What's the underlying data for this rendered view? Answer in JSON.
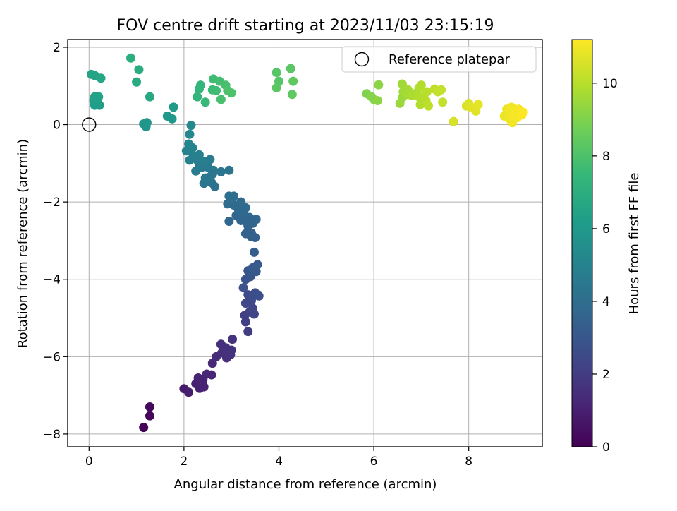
{
  "chart_data": {
    "type": "scatter",
    "title": "FOV centre drift starting at 2023/11/03 23:15:19",
    "xlabel": "Angular distance from reference (arcmin)",
    "ylabel": "Rotation from reference (arcmin)",
    "xlim": [
      -0.45,
      9.55
    ],
    "ylim": [
      -8.33,
      2.2
    ],
    "x_ticks": [
      0,
      2,
      4,
      6,
      8
    ],
    "y_ticks": [
      -8,
      -6,
      -4,
      -2,
      0,
      2
    ],
    "x_tick_labels": [
      "0",
      "2",
      "4",
      "6",
      "8"
    ],
    "y_tick_labels": [
      "−8",
      "−6",
      "−4",
      "−2",
      "0",
      "2"
    ],
    "grid": true,
    "legend": {
      "placement": "top-right",
      "entry": "Reference platepar"
    },
    "reference_point": {
      "x": 0,
      "y": 0
    },
    "colorbar": {
      "label": "Hours from first FF file",
      "range": [
        0,
        11.2
      ],
      "ticks": [
        0,
        2,
        4,
        6,
        8,
        10
      ],
      "tick_labels": [
        "0",
        "2",
        "4",
        "6",
        "8",
        "10"
      ],
      "colormap": [
        "#440154",
        "#482878",
        "#3e4a89",
        "#31688e",
        "#26828e",
        "#1f9e89",
        "#35b779",
        "#6ece58",
        "#b5de2b",
        "#fde725"
      ]
    },
    "points": [
      {
        "x": 1.15,
        "y": -7.83,
        "t": 0.1
      },
      {
        "x": 1.28,
        "y": -7.53,
        "t": 0.2
      },
      {
        "x": 1.28,
        "y": -7.3,
        "t": 0.3
      },
      {
        "x": 2.0,
        "y": -6.83,
        "t": 0.8
      },
      {
        "x": 2.1,
        "y": -6.92,
        "t": 0.9
      },
      {
        "x": 2.25,
        "y": -6.7,
        "t": 1.0
      },
      {
        "x": 2.33,
        "y": -6.82,
        "t": 1.0
      },
      {
        "x": 2.4,
        "y": -6.6,
        "t": 1.1
      },
      {
        "x": 2.42,
        "y": -6.78,
        "t": 1.1
      },
      {
        "x": 2.3,
        "y": -6.55,
        "t": 1.1
      },
      {
        "x": 2.48,
        "y": -6.45,
        "t": 1.2
      },
      {
        "x": 2.58,
        "y": -6.47,
        "t": 1.2
      },
      {
        "x": 2.6,
        "y": -6.17,
        "t": 1.3
      },
      {
        "x": 2.68,
        "y": -6.0,
        "t": 1.4
      },
      {
        "x": 2.8,
        "y": -5.9,
        "t": 1.5
      },
      {
        "x": 2.78,
        "y": -5.68,
        "t": 1.5
      },
      {
        "x": 2.9,
        "y": -6.03,
        "t": 1.5
      },
      {
        "x": 2.95,
        "y": -5.87,
        "t": 1.6
      },
      {
        "x": 2.88,
        "y": -5.77,
        "t": 1.6
      },
      {
        "x": 3.0,
        "y": -5.83,
        "t": 1.6
      },
      {
        "x": 3.02,
        "y": -5.55,
        "t": 1.7
      },
      {
        "x": 2.98,
        "y": -5.95,
        "t": 1.6
      },
      {
        "x": 3.35,
        "y": -5.35,
        "t": 2.0
      },
      {
        "x": 3.3,
        "y": -5.1,
        "t": 2.1
      },
      {
        "x": 3.28,
        "y": -4.93,
        "t": 2.1
      },
      {
        "x": 3.38,
        "y": -4.85,
        "t": 2.2
      },
      {
        "x": 3.45,
        "y": -4.75,
        "t": 2.3
      },
      {
        "x": 3.48,
        "y": -4.9,
        "t": 2.3
      },
      {
        "x": 3.3,
        "y": -4.62,
        "t": 2.4
      },
      {
        "x": 3.42,
        "y": -4.55,
        "t": 2.4
      },
      {
        "x": 3.35,
        "y": -4.4,
        "t": 2.5
      },
      {
        "x": 3.5,
        "y": -4.35,
        "t": 2.6
      },
      {
        "x": 3.45,
        "y": -4.45,
        "t": 2.6
      },
      {
        "x": 3.58,
        "y": -4.43,
        "t": 2.7
      },
      {
        "x": 3.25,
        "y": -4.22,
        "t": 2.8
      },
      {
        "x": 3.3,
        "y": -4.0,
        "t": 2.9
      },
      {
        "x": 3.4,
        "y": -3.93,
        "t": 3.0
      },
      {
        "x": 3.35,
        "y": -3.78,
        "t": 3.0
      },
      {
        "x": 3.45,
        "y": -3.7,
        "t": 3.1
      },
      {
        "x": 3.52,
        "y": -3.8,
        "t": 3.1
      },
      {
        "x": 3.55,
        "y": -3.62,
        "t": 3.2
      },
      {
        "x": 3.48,
        "y": -3.3,
        "t": 3.3
      },
      {
        "x": 3.42,
        "y": -2.9,
        "t": 3.4
      },
      {
        "x": 3.5,
        "y": -2.92,
        "t": 3.4
      },
      {
        "x": 3.3,
        "y": -2.82,
        "t": 3.5
      },
      {
        "x": 3.42,
        "y": -2.8,
        "t": 3.5
      },
      {
        "x": 3.35,
        "y": -2.62,
        "t": 3.5
      },
      {
        "x": 3.45,
        "y": -2.55,
        "t": 3.6
      },
      {
        "x": 3.2,
        "y": -2.48,
        "t": 3.6
      },
      {
        "x": 3.3,
        "y": -2.5,
        "t": 3.6
      },
      {
        "x": 3.52,
        "y": -2.45,
        "t": 3.7
      },
      {
        "x": 3.38,
        "y": -2.4,
        "t": 3.7
      },
      {
        "x": 3.1,
        "y": -2.35,
        "t": 3.7
      },
      {
        "x": 3.25,
        "y": -2.3,
        "t": 3.8
      },
      {
        "x": 3.15,
        "y": -2.2,
        "t": 3.8
      },
      {
        "x": 3.3,
        "y": -2.15,
        "t": 3.8
      },
      {
        "x": 3.05,
        "y": -2.08,
        "t": 3.9
      },
      {
        "x": 2.92,
        "y": -2.05,
        "t": 3.9
      },
      {
        "x": 3.2,
        "y": -2.0,
        "t": 3.9
      },
      {
        "x": 3.0,
        "y": -1.93,
        "t": 4.0
      },
      {
        "x": 2.95,
        "y": -1.85,
        "t": 4.0
      },
      {
        "x": 3.05,
        "y": -1.85,
        "t": 4.0
      },
      {
        "x": 2.95,
        "y": -2.5,
        "t": 3.7
      },
      {
        "x": 2.95,
        "y": -1.18,
        "t": 4.3
      },
      {
        "x": 2.78,
        "y": -1.22,
        "t": 4.4
      },
      {
        "x": 2.65,
        "y": -1.6,
        "t": 4.2
      },
      {
        "x": 2.58,
        "y": -1.5,
        "t": 4.3
      },
      {
        "x": 2.55,
        "y": -1.35,
        "t": 4.4
      },
      {
        "x": 2.42,
        "y": -1.52,
        "t": 4.4
      },
      {
        "x": 2.45,
        "y": -1.38,
        "t": 4.5
      },
      {
        "x": 2.62,
        "y": -1.18,
        "t": 4.5
      },
      {
        "x": 2.5,
        "y": -1.1,
        "t": 4.6
      },
      {
        "x": 2.38,
        "y": -1.1,
        "t": 4.6
      },
      {
        "x": 2.25,
        "y": -1.2,
        "t": 4.7
      },
      {
        "x": 2.32,
        "y": -1.05,
        "t": 4.7
      },
      {
        "x": 2.42,
        "y": -0.95,
        "t": 4.8
      },
      {
        "x": 2.28,
        "y": -0.92,
        "t": 4.8
      },
      {
        "x": 2.12,
        "y": -0.92,
        "t": 4.9
      },
      {
        "x": 2.2,
        "y": -0.8,
        "t": 4.9
      },
      {
        "x": 2.32,
        "y": -0.78,
        "t": 4.9
      },
      {
        "x": 2.05,
        "y": -0.68,
        "t": 5.0
      },
      {
        "x": 2.18,
        "y": -0.6,
        "t": 5.0
      },
      {
        "x": 2.1,
        "y": -0.5,
        "t": 5.1
      },
      {
        "x": 2.12,
        "y": -0.25,
        "t": 5.2
      },
      {
        "x": 2.15,
        "y": -0.02,
        "t": 5.3
      },
      {
        "x": 2.55,
        "y": -0.9,
        "t": 4.7
      },
      {
        "x": 2.6,
        "y": -1.28,
        "t": 4.4
      },
      {
        "x": 1.15,
        "y": 0.02,
        "t": 5.8
      },
      {
        "x": 1.2,
        "y": -0.05,
        "t": 5.8
      },
      {
        "x": 1.22,
        "y": 0.05,
        "t": 5.9
      },
      {
        "x": 1.65,
        "y": 0.22,
        "t": 6.0
      },
      {
        "x": 1.75,
        "y": 0.15,
        "t": 6.0
      },
      {
        "x": 1.78,
        "y": 0.45,
        "t": 6.1
      },
      {
        "x": 0.12,
        "y": 0.5,
        "t": 6.2
      },
      {
        "x": 0.22,
        "y": 0.5,
        "t": 6.2
      },
      {
        "x": 0.1,
        "y": 0.62,
        "t": 6.3
      },
      {
        "x": 0.18,
        "y": 0.62,
        "t": 6.3
      },
      {
        "x": 0.12,
        "y": 0.72,
        "t": 6.4
      },
      {
        "x": 0.2,
        "y": 0.72,
        "t": 6.4
      },
      {
        "x": 0.05,
        "y": 1.3,
        "t": 6.5
      },
      {
        "x": 0.12,
        "y": 1.27,
        "t": 6.5
      },
      {
        "x": 0.25,
        "y": 1.2,
        "t": 6.6
      },
      {
        "x": 1.28,
        "y": 0.72,
        "t": 6.7
      },
      {
        "x": 1.0,
        "y": 1.1,
        "t": 6.8
      },
      {
        "x": 1.05,
        "y": 1.42,
        "t": 6.9
      },
      {
        "x": 0.88,
        "y": 1.72,
        "t": 7.0
      },
      {
        "x": 2.28,
        "y": 0.72,
        "t": 7.3
      },
      {
        "x": 2.32,
        "y": 0.92,
        "t": 7.4
      },
      {
        "x": 2.35,
        "y": 1.02,
        "t": 7.4
      },
      {
        "x": 2.45,
        "y": 0.58,
        "t": 7.5
      },
      {
        "x": 2.6,
        "y": 0.9,
        "t": 7.6
      },
      {
        "x": 2.62,
        "y": 1.18,
        "t": 7.7
      },
      {
        "x": 2.68,
        "y": 0.88,
        "t": 7.7
      },
      {
        "x": 2.75,
        "y": 1.12,
        "t": 7.8
      },
      {
        "x": 2.78,
        "y": 0.65,
        "t": 7.9
      },
      {
        "x": 2.88,
        "y": 1.02,
        "t": 7.9
      },
      {
        "x": 2.92,
        "y": 0.88,
        "t": 8.0
      },
      {
        "x": 3.0,
        "y": 0.82,
        "t": 8.0
      },
      {
        "x": 3.95,
        "y": 1.35,
        "t": 8.2
      },
      {
        "x": 4.0,
        "y": 1.12,
        "t": 8.2
      },
      {
        "x": 3.95,
        "y": 0.95,
        "t": 8.3
      },
      {
        "x": 4.25,
        "y": 1.45,
        "t": 8.3
      },
      {
        "x": 4.3,
        "y": 1.12,
        "t": 8.4
      },
      {
        "x": 4.28,
        "y": 0.78,
        "t": 8.4
      },
      {
        "x": 5.85,
        "y": 0.8,
        "t": 9.0
      },
      {
        "x": 5.95,
        "y": 0.72,
        "t": 9.1
      },
      {
        "x": 6.0,
        "y": 0.65,
        "t": 9.1
      },
      {
        "x": 6.08,
        "y": 0.62,
        "t": 9.2
      },
      {
        "x": 6.1,
        "y": 1.03,
        "t": 9.2
      },
      {
        "x": 6.55,
        "y": 0.55,
        "t": 9.5
      },
      {
        "x": 6.6,
        "y": 0.7,
        "t": 9.5
      },
      {
        "x": 6.62,
        "y": 0.85,
        "t": 9.6
      },
      {
        "x": 6.6,
        "y": 1.05,
        "t": 9.6
      },
      {
        "x": 6.7,
        "y": 0.78,
        "t": 9.7
      },
      {
        "x": 6.72,
        "y": 0.9,
        "t": 9.7
      },
      {
        "x": 6.8,
        "y": 0.75,
        "t": 9.8
      },
      {
        "x": 6.9,
        "y": 0.82,
        "t": 9.8
      },
      {
        "x": 6.95,
        "y": 0.95,
        "t": 9.9
      },
      {
        "x": 6.98,
        "y": 0.52,
        "t": 9.9
      },
      {
        "x": 7.0,
        "y": 1.02,
        "t": 9.9
      },
      {
        "x": 7.05,
        "y": 0.72,
        "t": 10.0
      },
      {
        "x": 7.1,
        "y": 0.62,
        "t": 10.0
      },
      {
        "x": 7.12,
        "y": 0.85,
        "t": 10.0
      },
      {
        "x": 7.15,
        "y": 0.48,
        "t": 10.1
      },
      {
        "x": 7.28,
        "y": 0.92,
        "t": 10.1
      },
      {
        "x": 7.35,
        "y": 0.85,
        "t": 10.2
      },
      {
        "x": 7.42,
        "y": 0.9,
        "t": 10.2
      },
      {
        "x": 7.45,
        "y": 0.58,
        "t": 10.2
      },
      {
        "x": 6.95,
        "y": 0.72,
        "t": 9.9
      },
      {
        "x": 7.68,
        "y": 0.08,
        "t": 10.5
      },
      {
        "x": 7.95,
        "y": 0.48,
        "t": 10.6
      },
      {
        "x": 8.0,
        "y": 0.55,
        "t": 10.6
      },
      {
        "x": 8.05,
        "y": 0.45,
        "t": 10.7
      },
      {
        "x": 8.15,
        "y": 0.35,
        "t": 10.7
      },
      {
        "x": 8.2,
        "y": 0.52,
        "t": 10.8
      },
      {
        "x": 8.75,
        "y": 0.22,
        "t": 10.9
      },
      {
        "x": 8.8,
        "y": 0.4,
        "t": 10.9
      },
      {
        "x": 8.85,
        "y": 0.3,
        "t": 11.0
      },
      {
        "x": 8.88,
        "y": 0.12,
        "t": 11.0
      },
      {
        "x": 8.9,
        "y": 0.45,
        "t": 11.0
      },
      {
        "x": 8.92,
        "y": 0.05,
        "t": 11.0
      },
      {
        "x": 8.95,
        "y": 0.22,
        "t": 11.1
      },
      {
        "x": 8.98,
        "y": 0.35,
        "t": 11.1
      },
      {
        "x": 9.02,
        "y": 0.18,
        "t": 11.1
      },
      {
        "x": 9.05,
        "y": 0.4,
        "t": 11.1
      },
      {
        "x": 9.12,
        "y": 0.25,
        "t": 11.2
      },
      {
        "x": 9.15,
        "y": 0.32,
        "t": 11.2
      }
    ]
  }
}
